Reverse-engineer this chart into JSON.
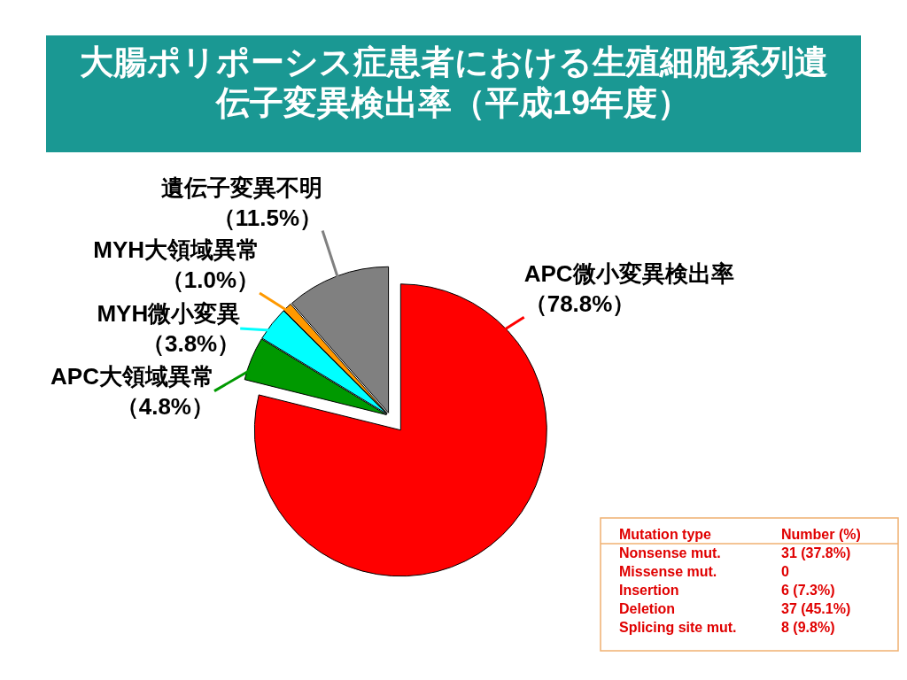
{
  "chart_data": {
    "type": "pie",
    "title": "大腸ポリポーシス症患者における生殖細胞系列遺伝子変異検出率（平成19年度）",
    "categories": [
      "APC微小変異検出率",
      "APC大領域異常",
      "MYH微小変異",
      "MYH大領域異常",
      "遺伝子変異不明"
    ],
    "values": [
      78.8,
      4.8,
      3.8,
      1.0,
      11.5
    ],
    "colors": [
      "#ff0000",
      "#009900",
      "#00ffff",
      "#ff9900",
      "#808080"
    ],
    "value_labels": [
      "（78.8%）",
      "（4.8%）",
      "（3.8%）",
      "（1.0%）",
      "（11.5%）"
    ],
    "annotations": [
      "Mutation type",
      "Number (%)",
      "Nonsense mut.",
      "31 (37.8%)",
      "Missense mut.",
      "0",
      "Insertion",
      "6 (7.3%)",
      "Deletion",
      "37 (45.1%)",
      "Splicing site mut.",
      "8 (9.8%)"
    ]
  }
}
